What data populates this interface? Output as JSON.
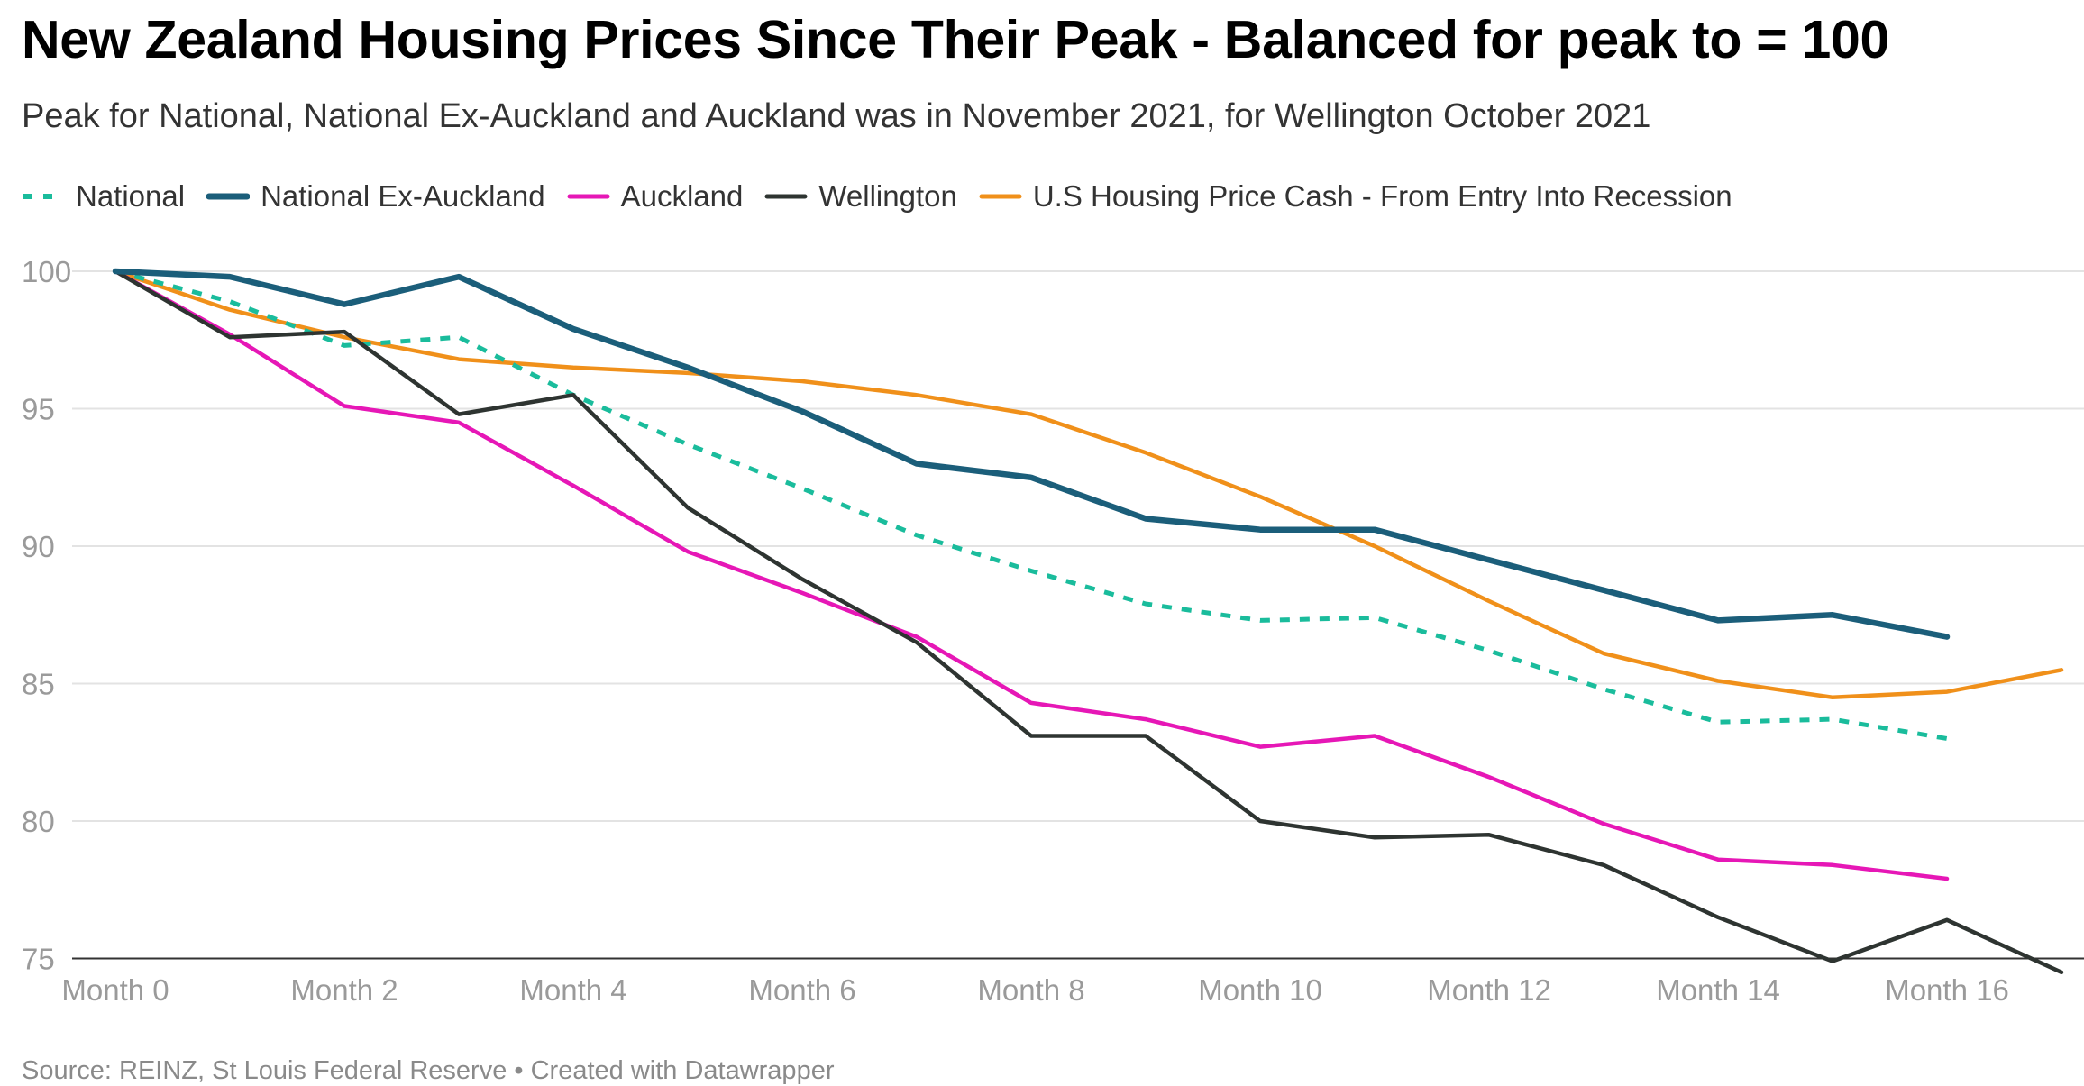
{
  "chart_data": {
    "type": "line",
    "title": "New Zealand Housing Prices Since Their Peak - Balanced for peak to = 100",
    "subtitle": "Peak for National, National Ex-Auckland and Auckland was in November 2021, for Wellington October 2021",
    "source": "Source: REINZ, St Louis Federal Reserve • Created with Datawrapper",
    "ylim": [
      75,
      100
    ],
    "y_ticks": [
      100,
      95,
      90,
      85,
      80,
      75
    ],
    "x_ticks": [
      {
        "x": 0,
        "label": "Month 0"
      },
      {
        "x": 2,
        "label": "Month 2"
      },
      {
        "x": 4,
        "label": "Month 4"
      },
      {
        "x": 6,
        "label": "Month 6"
      },
      {
        "x": 8,
        "label": "Month 8"
      },
      {
        "x": 10,
        "label": "Month 10"
      },
      {
        "x": 12,
        "label": "Month 12"
      },
      {
        "x": 14,
        "label": "Month 14"
      },
      {
        "x": 16,
        "label": "Month 16"
      }
    ],
    "grid": true,
    "legend_position": "top-left",
    "series": [
      {
        "name": "National",
        "color": "#1abc9c",
        "dashed": true,
        "x": [
          0,
          1,
          2,
          3,
          4,
          5,
          6,
          7,
          8,
          9,
          10,
          11,
          12,
          13,
          14,
          15,
          16
        ],
        "values": [
          100,
          98.9,
          97.3,
          97.6,
          95.5,
          93.7,
          92.1,
          90.4,
          89.1,
          87.9,
          87.3,
          87.4,
          86.2,
          84.8,
          83.6,
          83.7,
          83.0
        ]
      },
      {
        "name": "National Ex-Auckland",
        "color": "#1b5e7a",
        "dashed": false,
        "x": [
          0,
          1,
          2,
          3,
          4,
          5,
          6,
          7,
          8,
          9,
          10,
          11,
          12,
          13,
          14,
          15,
          16
        ],
        "values": [
          100,
          99.8,
          98.8,
          99.8,
          97.9,
          96.5,
          94.9,
          93.0,
          92.5,
          91.0,
          90.6,
          90.6,
          89.5,
          88.4,
          87.3,
          87.5,
          86.7
        ]
      },
      {
        "name": "Auckland",
        "color": "#e617b6",
        "dashed": false,
        "x": [
          0,
          1,
          2,
          3,
          4,
          5,
          6,
          7,
          8,
          9,
          10,
          11,
          12,
          13,
          14,
          15,
          16
        ],
        "values": [
          100,
          97.7,
          95.1,
          94.5,
          92.2,
          89.8,
          88.3,
          86.7,
          84.3,
          83.7,
          82.7,
          83.1,
          81.6,
          79.9,
          78.6,
          78.4,
          77.9
        ]
      },
      {
        "name": "Wellington",
        "color": "#2e3431",
        "dashed": false,
        "x": [
          0,
          1,
          2,
          3,
          4,
          5,
          6,
          7,
          8,
          9,
          10,
          11,
          12,
          13,
          14,
          15,
          16,
          17
        ],
        "values": [
          100,
          97.6,
          97.8,
          94.8,
          95.5,
          91.4,
          88.8,
          86.5,
          83.1,
          83.1,
          80.0,
          79.4,
          79.5,
          78.4,
          76.5,
          74.9,
          76.4,
          74.5
        ]
      },
      {
        "name": "U.S Housing Price Cash - From Entry Into Recession",
        "color": "#f0901a",
        "dashed": false,
        "x": [
          0,
          1,
          2,
          3,
          4,
          5,
          6,
          7,
          8,
          9,
          10,
          11,
          12,
          13,
          14,
          15,
          16,
          17
        ],
        "values": [
          100,
          98.6,
          97.6,
          96.8,
          96.5,
          96.3,
          96.0,
          95.5,
          94.8,
          93.4,
          91.8,
          90.0,
          88.0,
          86.1,
          85.1,
          84.5,
          84.7,
          85.5
        ]
      }
    ]
  }
}
